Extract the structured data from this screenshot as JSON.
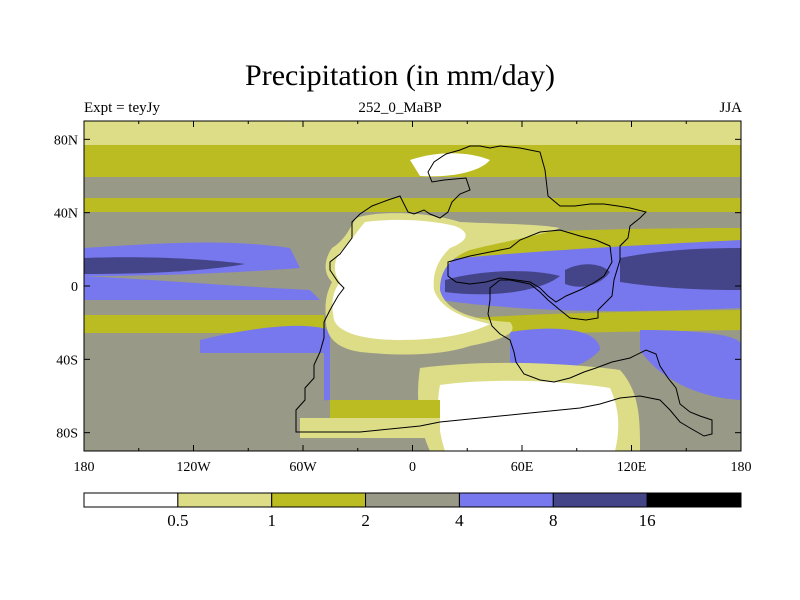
{
  "chart_data": {
    "type": "heatmap",
    "title": "Precipitation (in mm/day)",
    "subtitle_left": "Expt = teyJy",
    "subtitle_center": "252_0_MaBP",
    "subtitle_right": "JJA",
    "x_ticks": [
      "180",
      "120W",
      "60W",
      "0",
      "60E",
      "120E",
      "180"
    ],
    "x_tick_values": [
      -180,
      -120,
      -60,
      0,
      60,
      120,
      180
    ],
    "y_ticks": [
      "80N",
      "40N",
      "0",
      "40S",
      "80S"
    ],
    "y_tick_values": [
      80,
      40,
      0,
      -40,
      -80
    ],
    "xlim": [
      -180,
      180
    ],
    "ylim": [
      -90,
      90
    ],
    "colorbar": {
      "levels": [
        "0.5",
        "1",
        "2",
        "4",
        "8",
        "16"
      ],
      "level_values": [
        0.5,
        1,
        2,
        4,
        8,
        16
      ],
      "colors": [
        "#ffffff",
        "#dddd88",
        "#bbbb22",
        "#999988",
        "#7777ee",
        "#444488",
        "#000000"
      ]
    }
  }
}
